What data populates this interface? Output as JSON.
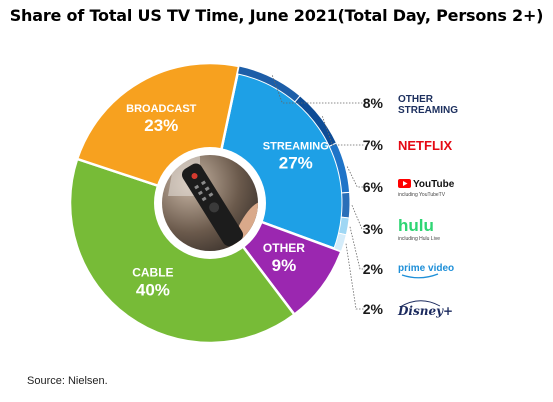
{
  "title": "Share of Total US TV Time, June 2021(Total Day, Persons 2+)",
  "source": "Source: Nielsen.",
  "chart_data": {
    "type": "pie",
    "title": "Share of Total US TV Time, June 2021(Total Day, Persons 2+)",
    "slices": [
      {
        "name": "STREAMING",
        "value": 27,
        "label": "27%",
        "color": "#1ea0e6"
      },
      {
        "name": "OTHER",
        "value": 9,
        "label": "9%",
        "color": "#9b27b0"
      },
      {
        "name": "CABLE",
        "value": 40,
        "label": "40%",
        "color": "#77bb37"
      },
      {
        "name": "BROADCAST",
        "value": 23,
        "label": "23%",
        "color": "#f7a11f"
      }
    ],
    "streaming_breakdown": [
      {
        "name": "OTHER STREAMING",
        "value": 8,
        "label": "8%",
        "color": "#1d5ea8"
      },
      {
        "name": "NETFLIX",
        "value": 7,
        "label": "7%",
        "color": "#0e4c96"
      },
      {
        "name": "YouTube",
        "subtitle": "including YouTubeTV",
        "value": 6,
        "label": "6%",
        "color": "#1f74c8"
      },
      {
        "name": "hulu",
        "subtitle": "including Hulu Live",
        "value": 3,
        "label": "3%",
        "color": "#2a6fb8"
      },
      {
        "name": "prime video",
        "value": 2,
        "label": "2%",
        "color": "#9fd7f4"
      },
      {
        "name": "Disney+",
        "value": 2,
        "label": "2%",
        "color": "#d4ecfa"
      }
    ]
  }
}
